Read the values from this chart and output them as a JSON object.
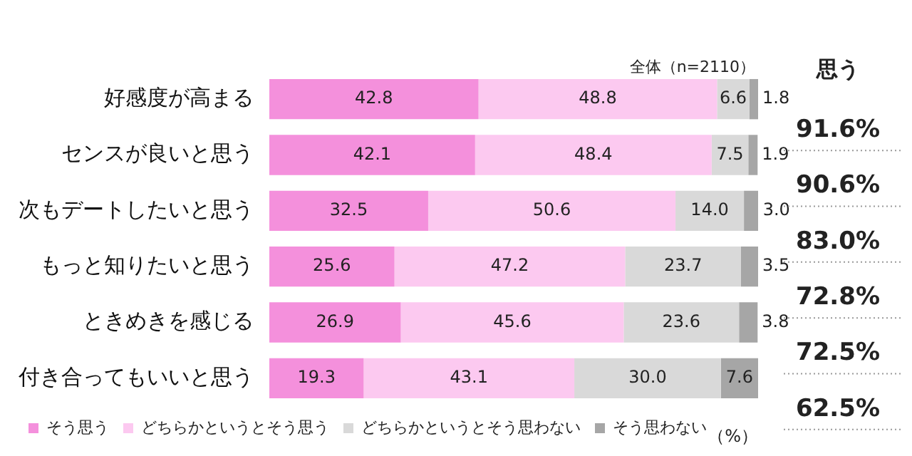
{
  "chart_data": {
    "type": "bar",
    "orientation": "horizontal",
    "stacked": true,
    "categories": [
      "好感度が高まる",
      "センスが良いと思う",
      "次もデートしたいと思う",
      "もっと知りたいと思う",
      "ときめきを感じる",
      "付き合ってもいいと思う"
    ],
    "series": [
      {
        "name": "そう思う",
        "color": "#f490dc",
        "values": [
          42.8,
          42.1,
          32.5,
          25.6,
          26.9,
          19.3
        ],
        "value_labels": [
          "42.8",
          "42.1",
          "32.5",
          "25.6",
          "26.9",
          "19.3"
        ]
      },
      {
        "name": "どちらかというとそう思う",
        "color": "#fcc9f0",
        "values": [
          48.8,
          48.4,
          50.6,
          47.2,
          45.6,
          43.1
        ],
        "value_labels": [
          "48.8",
          "48.4",
          "50.6",
          "47.2",
          "45.6",
          "43.1"
        ]
      },
      {
        "name": "どちらかというとそう思わない",
        "color": "#d9d9d9",
        "values": [
          6.6,
          7.5,
          14.0,
          23.7,
          23.6,
          30.0
        ],
        "value_labels": [
          "6.6",
          "7.5",
          "14.0",
          "23.7",
          "23.6",
          "30.0"
        ]
      },
      {
        "name": "そう思わない",
        "color": "#a6a6a6",
        "values": [
          1.8,
          1.9,
          3.0,
          3.5,
          3.8,
          7.6
        ],
        "value_labels": [
          "1.8",
          "1.9",
          "3.0",
          "3.5",
          "3.8",
          "7.6"
        ]
      }
    ],
    "xlim": [
      0,
      100
    ],
    "tick_labels": "y",
    "grid": false,
    "legend": "bottom",
    "annotations": [
      "全体（n=2110）",
      "思う",
      "91.6%",
      "90.6%",
      "83.0%",
      "72.8%",
      "72.5%",
      "62.5%",
      "（%）"
    ]
  }
}
